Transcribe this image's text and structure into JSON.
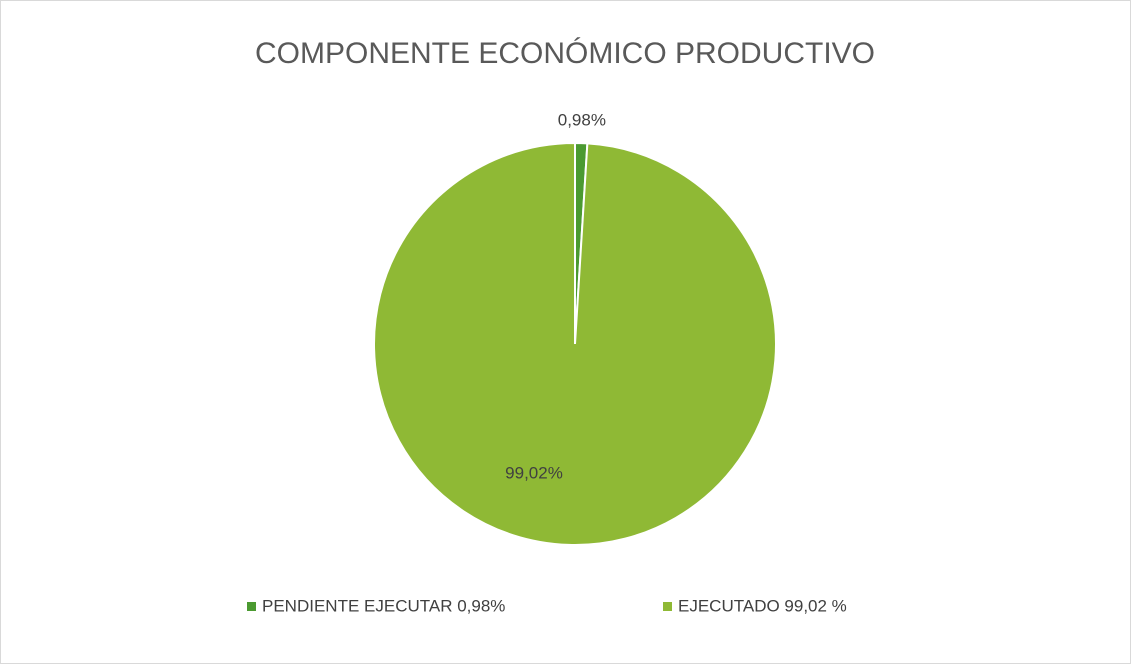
{
  "chart_data": {
    "type": "pie",
    "title": "COMPONENTE ECONÓMICO PRODUCTIVO",
    "categories": [
      "PENDIENTE EJECUTAR 0,98%",
      "EJECUTADO 99,02 %"
    ],
    "values": [
      0.98,
      99.02
    ],
    "value_labels": [
      "0,98%",
      "99,02%"
    ],
    "colors": [
      "#4b9a31",
      "#8fb935"
    ],
    "legend": "bottom"
  }
}
